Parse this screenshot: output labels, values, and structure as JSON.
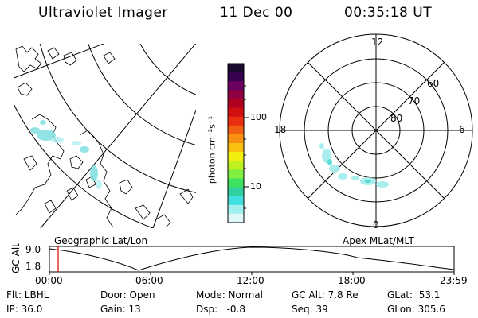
{
  "header": {
    "title": "Ultraviolet Imager",
    "date": "11 Dec 00",
    "time": "00:35:18 UT"
  },
  "geo_panel": {
    "label": "Geographic Lat/Lon"
  },
  "polar_panel": {
    "label": "Apex MLat/MLT",
    "mlt_labels": {
      "top": "12",
      "left": "18",
      "right": "6",
      "bottom": "0"
    },
    "lat_labels": [
      "60",
      "70",
      "80"
    ]
  },
  "colorbar": {
    "unit_label": "photon cm⁻²s⁻¹",
    "tick_labels": [
      "100",
      "10"
    ],
    "colors": [
      "#1a0a2e",
      "#3a0050",
      "#6a0060",
      "#900040",
      "#b00020",
      "#d01010",
      "#e83010",
      "#f06010",
      "#f89010",
      "#f8c010",
      "#f0f010",
      "#c0f020",
      "#80f040",
      "#40e060",
      "#30d0a0",
      "#40e0e0",
      "#a0f0f0",
      "#e0f8f8"
    ]
  },
  "timeline": {
    "ylabel": "GC Alt",
    "y_ticks": [
      "9.0",
      "1.8"
    ],
    "x_ticks": [
      "00:00",
      "06:00",
      "12:00",
      "18:00",
      "23:59"
    ],
    "marker_color": "#e00000"
  },
  "info": {
    "row1": {
      "flt": "Flt: LBHL",
      "door": "Door: Open",
      "mode": "Mode: Normal",
      "gc_alt": "GC Alt: 7.8 Re",
      "glat": "GLat:  53.1"
    },
    "row2": {
      "ip": "IP: 36.0",
      "gain": "Gain: 13",
      "dsp": "Dsp:   -0.8",
      "seq": "Seq: 39",
      "glon": "GLon: 305.6"
    }
  }
}
